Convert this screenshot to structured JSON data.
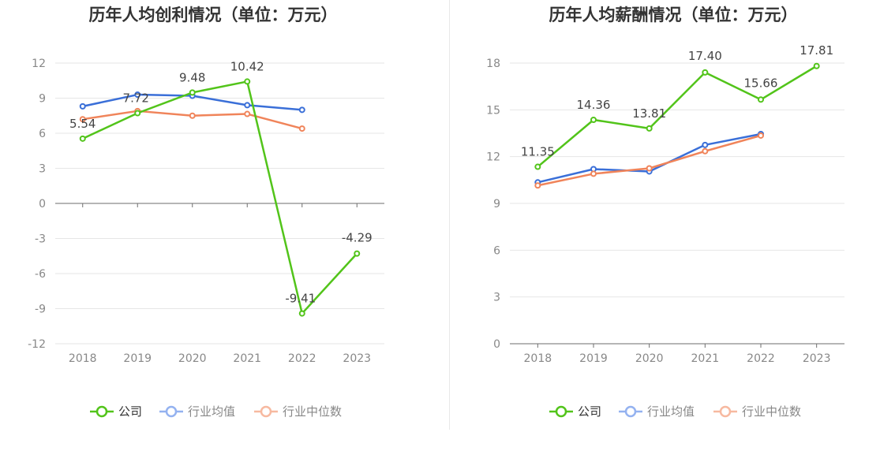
{
  "charts": [
    {
      "title": "历年人均创利情况（单位：万元）",
      "legend": [
        {
          "name": "公司",
          "color": "#52c41a"
        },
        {
          "name": "行业均值",
          "color": "#3a6fd8"
        },
        {
          "name": "行业中位数",
          "color": "#f0845a"
        }
      ]
    },
    {
      "title": "历年人均薪酬情况（单位：万元）",
      "legend": [
        {
          "name": "公司",
          "color": "#52c41a"
        },
        {
          "name": "行业均值",
          "color": "#3a6fd8"
        },
        {
          "name": "行业中位数",
          "color": "#f0845a"
        }
      ]
    }
  ],
  "chart_data": [
    {
      "type": "line",
      "title": "历年人均创利情况（单位：万元）",
      "categories": [
        "2018",
        "2019",
        "2020",
        "2021",
        "2022",
        "2023"
      ],
      "yticks": [
        12,
        9,
        6,
        3,
        0,
        -3,
        -6,
        -9,
        -12
      ],
      "ylim": [
        -12,
        12
      ],
      "grid": true,
      "legend_position": "bottom",
      "series": [
        {
          "name": "公司",
          "values": [
            5.54,
            7.72,
            9.48,
            10.42,
            -9.41,
            -4.29
          ],
          "labels": [
            "5.54",
            "7.72",
            "9.48",
            "10.42",
            "-9.41",
            "-4.29"
          ],
          "color": "#52c41a"
        },
        {
          "name": "行业均值",
          "values": [
            8.3,
            9.3,
            9.2,
            8.4,
            8.0,
            null
          ],
          "color": "#3a6fd8"
        },
        {
          "name": "行业中位数",
          "values": [
            7.2,
            7.9,
            7.5,
            7.65,
            6.4,
            null
          ],
          "color": "#f0845a"
        }
      ]
    },
    {
      "type": "line",
      "title": "历年人均薪酬情况（单位：万元）",
      "categories": [
        "2018",
        "2019",
        "2020",
        "2021",
        "2022",
        "2023"
      ],
      "yticks": [
        18,
        15,
        12,
        9,
        6,
        3,
        0
      ],
      "ylim": [
        0,
        18
      ],
      "grid": true,
      "legend_position": "bottom",
      "series": [
        {
          "name": "公司",
          "values": [
            11.35,
            14.36,
            13.81,
            17.4,
            15.66,
            17.81
          ],
          "labels": [
            "11.35",
            "14.36",
            "13.81",
            "17.40",
            "15.66",
            "17.81"
          ],
          "color": "#52c41a"
        },
        {
          "name": "行业均值",
          "values": [
            10.35,
            11.2,
            11.05,
            12.75,
            13.45,
            null
          ],
          "color": "#3a6fd8"
        },
        {
          "name": "行业中位数",
          "values": [
            10.15,
            10.9,
            11.25,
            12.35,
            13.35,
            null
          ],
          "color": "#f0845a"
        }
      ]
    }
  ]
}
